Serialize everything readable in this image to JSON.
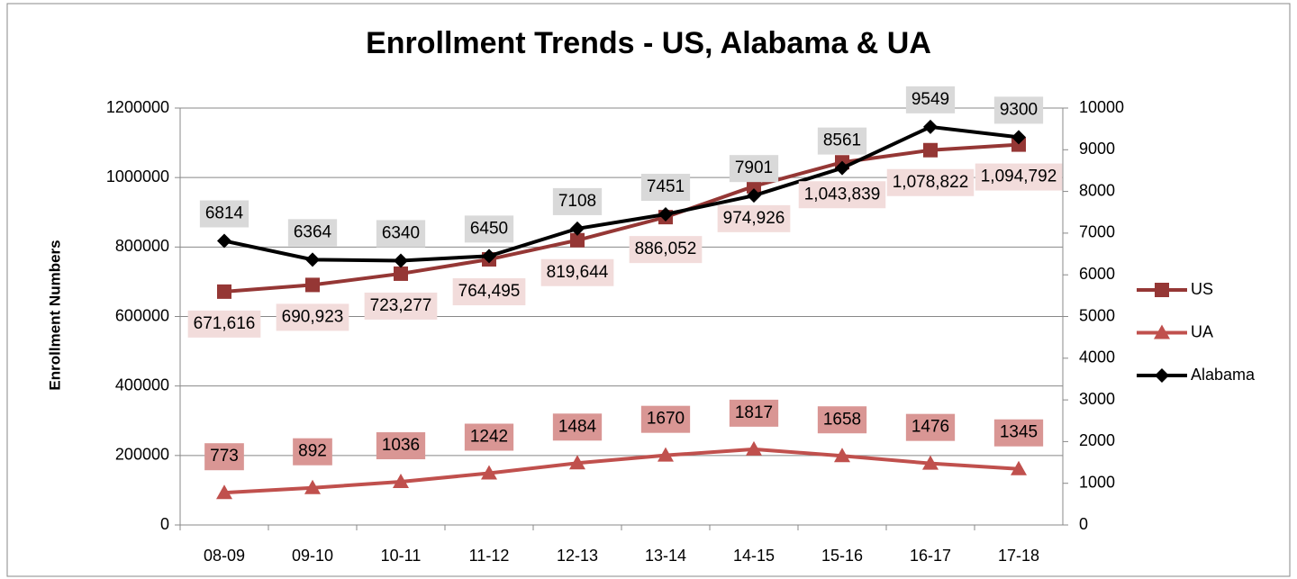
{
  "chart_data": {
    "type": "line",
    "title": "Enrollment Trends - US, Alabama & UA",
    "y_label": "Enrollment Numbers",
    "categories": [
      "08-09",
      "09-10",
      "10-11",
      "11-12",
      "12-13",
      "13-14",
      "14-15",
      "15-16",
      "16-17",
      "17-18"
    ],
    "ylim": [
      0,
      1200000
    ],
    "yticks": [
      0,
      200000,
      400000,
      600000,
      800000,
      1000000,
      1200000
    ],
    "y2lim": [
      0,
      10000
    ],
    "y2ticks": [
      0,
      1000,
      2000,
      3000,
      4000,
      5000,
      6000,
      7000,
      8000,
      9000,
      10000
    ],
    "grid": true,
    "legend": "right",
    "series": [
      {
        "name": "US",
        "color": "#953735",
        "marker": "square",
        "label_bg": "#f2dcdb",
        "values": [
          671616,
          690923,
          723277,
          764495,
          819644,
          886052,
          974926,
          1043839,
          1078822,
          1094792
        ],
        "value_labels": [
          "671,616",
          "690,923",
          "723,277",
          "764,495",
          "819,644",
          "886,052",
          "974,926",
          "1,043,839",
          "1,078,822",
          "1,094,792"
        ]
      },
      {
        "name": "UA",
        "color": "#c0504d",
        "marker": "triangle",
        "axis": "y2",
        "label_bg": "#d99694",
        "values": [
          773,
          892,
          1036,
          1242,
          1484,
          1670,
          1817,
          1658,
          1476,
          1345
        ]
      },
      {
        "name": "Alabama",
        "color": "#000000",
        "marker": "diamond",
        "axis": "y2",
        "label_bg": "#d9d9d9",
        "values": [
          6814,
          6364,
          6340,
          6450,
          7108,
          7451,
          7901,
          8561,
          9549,
          9300
        ]
      }
    ]
  }
}
